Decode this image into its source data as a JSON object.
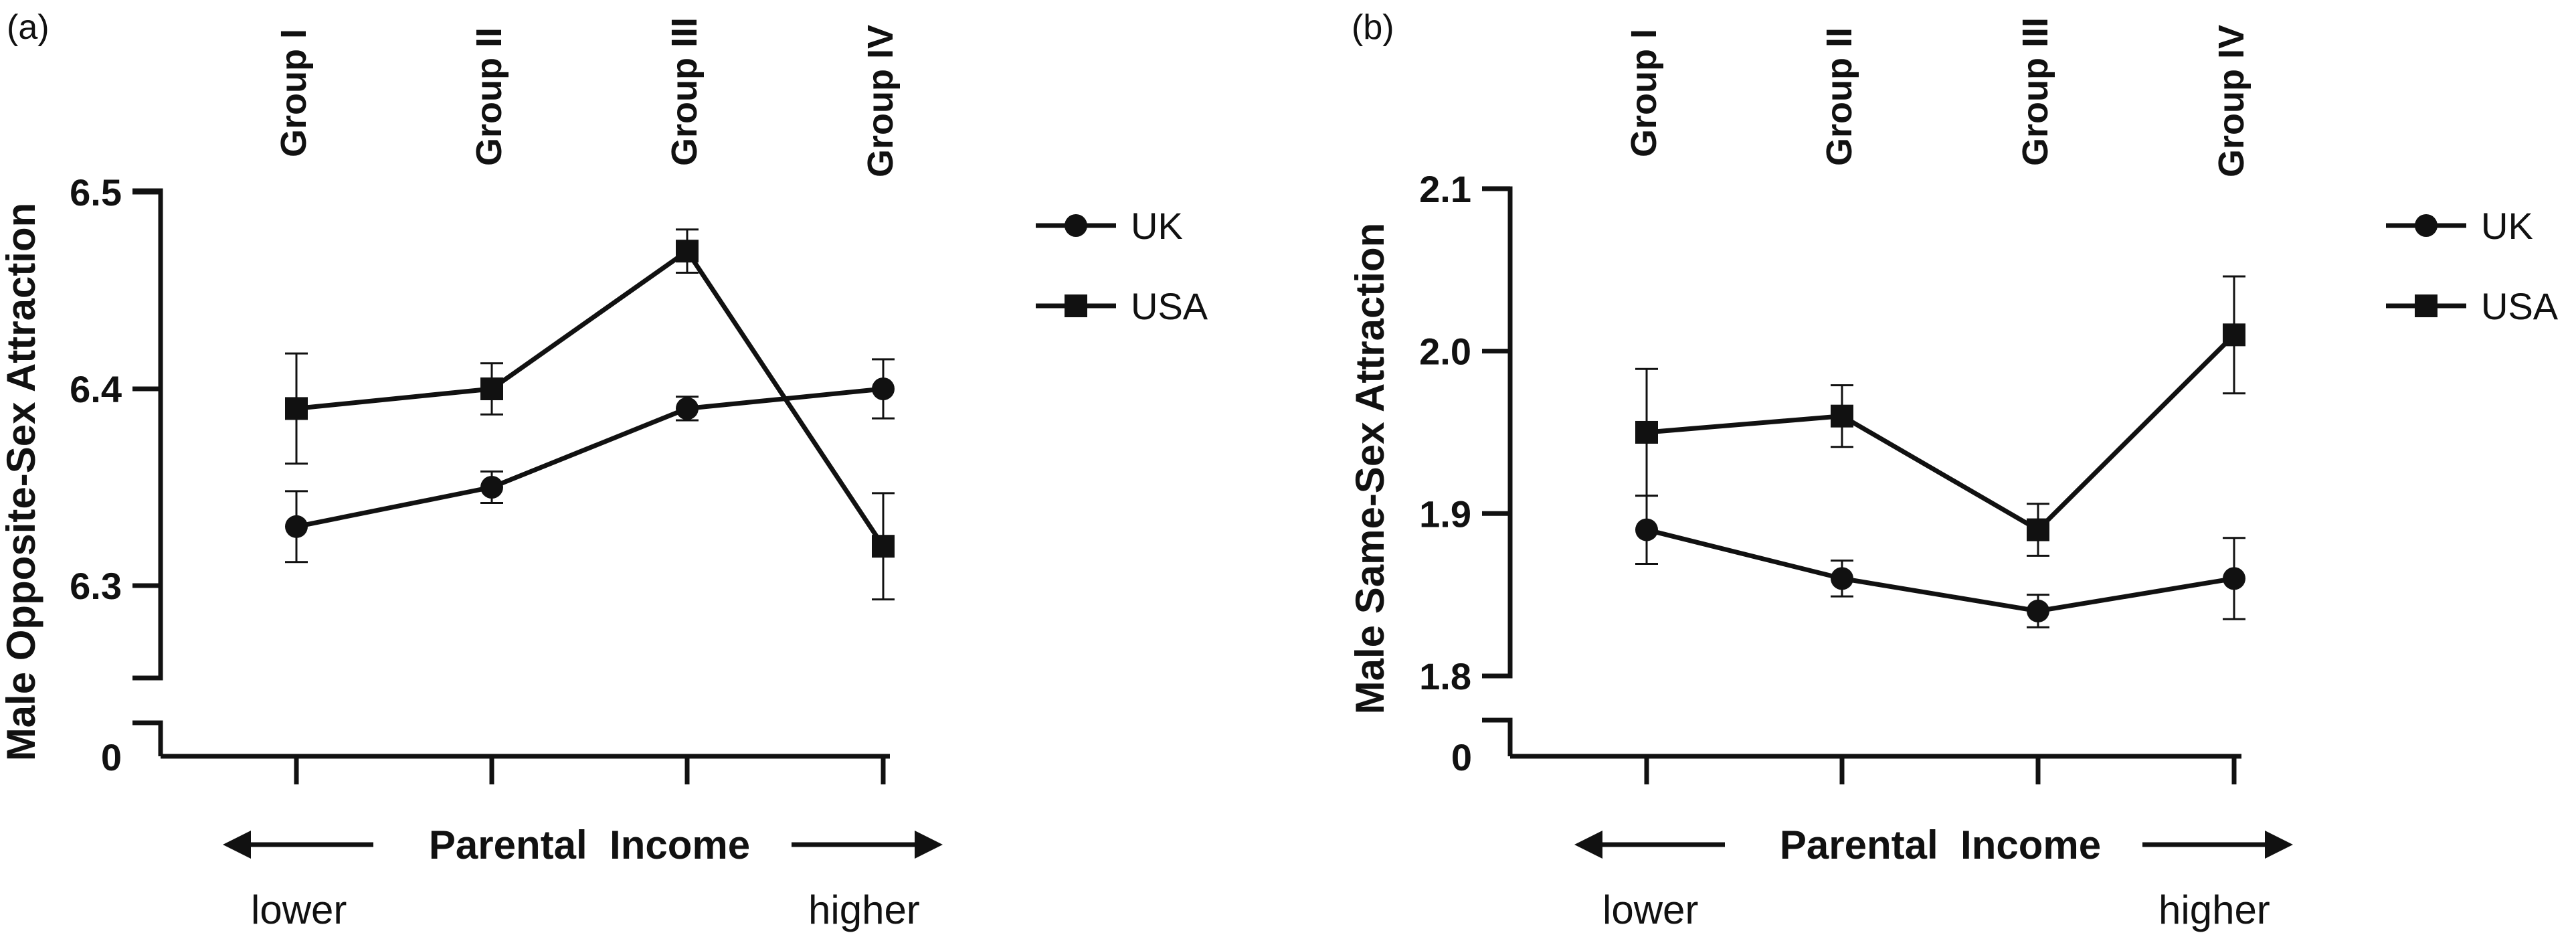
{
  "chart_data": [
    {
      "panel": "(a)",
      "type": "line",
      "ylabel": "Male Opposite-Sex Attraction",
      "y_ticks": [
        "6.3",
        "6.4",
        "6.5"
      ],
      "y_break_tick": "0",
      "ylim": [
        6.25,
        6.5
      ],
      "categories": [
        "Group I",
        "Group II",
        "Group III",
        "Group IV"
      ],
      "series": [
        {
          "name": "UK",
          "marker": "circle",
          "values": [
            6.33,
            6.35,
            6.39,
            6.4
          ],
          "errors": [
            0.018,
            0.008,
            0.006,
            0.015
          ]
        },
        {
          "name": "USA",
          "marker": "square",
          "values": [
            6.39,
            6.4,
            6.47,
            6.32
          ],
          "errors": [
            0.028,
            0.013,
            0.011,
            0.027
          ]
        }
      ],
      "x_axis_text": {
        "left": "lower",
        "center": "Parental  Income",
        "right": "higher"
      }
    },
    {
      "panel": "(b)",
      "type": "line",
      "ylabel": "Male Same-Sex Attraction",
      "y_ticks": [
        "1.8",
        "1.9",
        "2.0",
        "2.1"
      ],
      "y_break_tick": "0",
      "ylim": [
        1.8,
        2.1
      ],
      "categories": [
        "Group I",
        "Group II",
        "Group III",
        "Group IV"
      ],
      "series": [
        {
          "name": "UK",
          "marker": "circle",
          "values": [
            1.89,
            1.86,
            1.84,
            1.86
          ],
          "errors": [
            0.021,
            0.011,
            0.01,
            0.025
          ]
        },
        {
          "name": "USA",
          "marker": "square",
          "values": [
            1.95,
            1.96,
            1.89,
            2.01
          ],
          "errors": [
            0.039,
            0.019,
            0.016,
            0.036
          ]
        }
      ],
      "x_axis_text": {
        "left": "lower",
        "center": "Parental  Income",
        "right": "higher"
      }
    }
  ]
}
